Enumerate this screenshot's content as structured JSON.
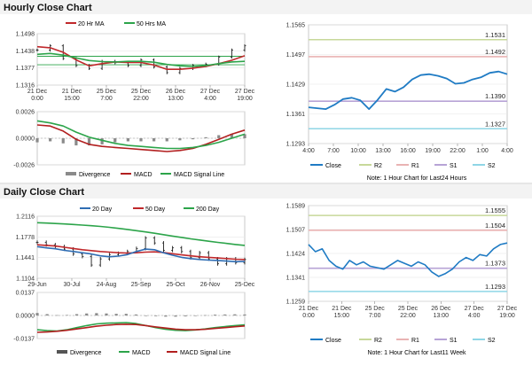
{
  "sections": {
    "hourly_title": "Hourly Close Chart",
    "daily_title": "Daily Close Chart"
  },
  "colors": {
    "ma20": "#2f6db3",
    "ma50": "#c0282b",
    "ma200": "#2ca44a",
    "close": "#1f7bc4",
    "r2": "#c7d89a",
    "r1": "#e9b3b3",
    "s1": "#b7a3d6",
    "s2": "#8fd6e6",
    "divergence": "#8a8a8a",
    "macd": "#b21f1f",
    "signal": "#2ca44a",
    "grid": "#e6e6e6"
  },
  "chart_data": [
    {
      "id": "hourly_price",
      "type": "line",
      "title": "",
      "y_ticks": [
        "1.1498",
        "1.1438",
        "1.1377",
        "1.1316"
      ],
      "ylim": [
        1.1316,
        1.1498
      ],
      "x_ticks": [
        [
          "21 Dec",
          "0:00"
        ],
        [
          "21 Dec",
          "15:00"
        ],
        [
          "25 Dec",
          "7:00"
        ],
        [
          "25 Dec",
          "22:00"
        ],
        [
          "26 Dec",
          "13:00"
        ],
        [
          "27 Dec",
          "4:00"
        ],
        [
          "27 Dec",
          "19:00"
        ]
      ],
      "legend": [
        "20 Hr MA",
        "50 Hrs MA"
      ],
      "series": [
        {
          "name": "20 Hr MA",
          "values": [
            1.1452,
            1.1448,
            1.1432,
            1.1405,
            1.1384,
            1.1392,
            1.1398,
            1.1396,
            1.1396,
            1.1387,
            1.1372,
            1.1372,
            1.1376,
            1.1382,
            1.1392,
            1.1404,
            1.142
          ]
        },
        {
          "name": "50 Hrs MA",
          "values": [
            1.1425,
            1.1428,
            1.1422,
            1.1412,
            1.1403,
            1.1399,
            1.1398,
            1.14,
            1.14,
            1.1397,
            1.1389,
            1.1384,
            1.1382,
            1.1385,
            1.1392,
            1.1398,
            1.14
          ]
        },
        {
          "name": "Close",
          "values": [
            1.144,
            1.1455,
            1.141,
            1.1385,
            1.1375,
            1.14,
            1.1395,
            1.1385,
            1.1405,
            1.138,
            1.136,
            1.1375,
            1.1385,
            1.139,
            1.1415,
            1.144,
            1.1455
          ]
        }
      ],
      "hlines": [
        1.1418,
        1.1388
      ]
    },
    {
      "id": "hourly_macd",
      "type": "line",
      "y_ticks": [
        "0.0026",
        "0.0000",
        "-0.0026"
      ],
      "ylim": [
        -0.0026,
        0.0026
      ],
      "legend": [
        "Divergence",
        "MACD",
        "MACD Signal Line"
      ],
      "series": [
        {
          "name": "MACD",
          "values": [
            0.0013,
            0.0012,
            0.0007,
            -0.0001,
            -0.0006,
            -0.0008,
            -0.0009,
            -0.001,
            -0.0011,
            -0.0012,
            -0.0013,
            -0.0012,
            -0.001,
            -0.0006,
            -0.0001,
            0.0004,
            0.0008
          ]
        },
        {
          "name": "MACD Signal Line",
          "values": [
            0.0017,
            0.0015,
            0.0012,
            0.0006,
            0.0001,
            -0.0002,
            -0.0005,
            -0.0007,
            -0.0008,
            -0.0009,
            -0.001,
            -0.001,
            -0.0009,
            -0.0007,
            -0.0004,
            0.0,
            0.0004
          ]
        }
      ]
    },
    {
      "id": "hourly_pivot",
      "type": "line",
      "y_ticks": [
        "1.1565",
        "1.1497",
        "1.1429",
        "1.1361",
        "1.1293"
      ],
      "ylim": [
        1.1293,
        1.1565
      ],
      "x_ticks": [
        "4:00",
        "7:00",
        "10:00",
        "13:00",
        "16:00",
        "19:00",
        "22:00",
        "1:00",
        "4:00"
      ],
      "levels": [
        {
          "name": "R2",
          "value": 1.1531,
          "label": "1.1531"
        },
        {
          "name": "R1",
          "value": 1.1492,
          "label": "1.1492"
        },
        {
          "name": "S1",
          "value": 1.139,
          "label": "1.1390"
        },
        {
          "name": "S2",
          "value": 1.1327,
          "label": "1.1327"
        }
      ],
      "legend": [
        "Close",
        "R2",
        "R1",
        "S1",
        "S2"
      ],
      "note": "Note: 1 Hour Chart for Last24 Hours",
      "series": [
        {
          "name": "Close",
          "values": [
            1.1376,
            1.1374,
            1.1372,
            1.1382,
            1.1395,
            1.1398,
            1.1392,
            1.1372,
            1.1393,
            1.1418,
            1.1412,
            1.1422,
            1.144,
            1.145,
            1.1452,
            1.1448,
            1.1442,
            1.143,
            1.1432,
            1.144,
            1.1445,
            1.1455,
            1.1458,
            1.1452
          ]
        }
      ]
    },
    {
      "id": "daily_price",
      "type": "line",
      "y_ticks": [
        "1.2116",
        "1.1778",
        "1.1441",
        "1.1104"
      ],
      "ylim": [
        1.1104,
        1.2116
      ],
      "x_ticks": [
        "29-Jun",
        "30-Jul",
        "24-Aug",
        "25-Sep",
        "25-Oct",
        "26-Nov",
        "25-Dec"
      ],
      "legend": [
        "20 Day",
        "50 Day",
        "200 Day"
      ],
      "series": [
        {
          "name": "20 Day",
          "values": [
            1.162,
            1.16,
            1.1585,
            1.156,
            1.154,
            1.152,
            1.15,
            1.147,
            1.1455,
            1.1465,
            1.149,
            1.154,
            1.158,
            1.157,
            1.152,
            1.148,
            1.1445,
            1.1425,
            1.141,
            1.14,
            1.1395,
            1.1385,
            1.1375,
            1.138
          ]
        },
        {
          "name": "50 Day",
          "values": [
            1.165,
            1.164,
            1.163,
            1.161,
            1.159,
            1.157,
            1.1555,
            1.154,
            1.153,
            1.152,
            1.1515,
            1.152,
            1.153,
            1.1535,
            1.1525,
            1.1505,
            1.1485,
            1.147,
            1.1455,
            1.1445,
            1.1435,
            1.1425,
            1.1415,
            1.141
          ]
        },
        {
          "name": "200 Day",
          "values": [
            1.201,
            1.2005,
            1.1998,
            1.199,
            1.1982,
            1.1972,
            1.1962,
            1.195,
            1.1935,
            1.1918,
            1.19,
            1.188,
            1.186,
            1.1838,
            1.1815,
            1.1792,
            1.177,
            1.1748,
            1.1728,
            1.1708,
            1.169,
            1.1672,
            1.1655,
            1.164
          ]
        },
        {
          "name": "Close",
          "values": [
            1.169,
            1.165,
            1.162,
            1.158,
            1.15,
            1.146,
            1.132,
            1.142,
            1.149,
            1.151,
            1.154,
            1.159,
            1.176,
            1.168,
            1.156,
            1.16,
            1.154,
            1.144,
            1.152,
            1.142,
            1.134,
            1.142,
            1.136,
            1.141
          ]
        }
      ]
    },
    {
      "id": "daily_macd",
      "type": "line",
      "y_ticks": [
        "0.0137",
        "0.0000",
        "-0.0137"
      ],
      "ylim": [
        -0.0137,
        0.0137
      ],
      "legend": [
        "Divergence",
        "MACD",
        "MACD Signal Line"
      ],
      "series": [
        {
          "name": "MACD",
          "values": [
            -0.0085,
            -0.009,
            -0.0092,
            -0.0085,
            -0.0072,
            -0.006,
            -0.005,
            -0.0046,
            -0.0044,
            -0.0042,
            -0.0048,
            -0.006,
            -0.0072,
            -0.0082,
            -0.0088,
            -0.009,
            -0.0086,
            -0.008,
            -0.0072,
            -0.0066,
            -0.006,
            -0.0056
          ]
        },
        {
          "name": "MACD Signal Line",
          "values": [
            -0.01,
            -0.0098,
            -0.0094,
            -0.0088,
            -0.008,
            -0.0072,
            -0.0064,
            -0.0058,
            -0.0054,
            -0.0052,
            -0.0054,
            -0.006,
            -0.0068,
            -0.0075,
            -0.0081,
            -0.0085,
            -0.0085,
            -0.0082,
            -0.0077,
            -0.0072,
            -0.0067,
            -0.0062
          ]
        }
      ]
    },
    {
      "id": "daily_pivot",
      "type": "line",
      "y_ticks": [
        "1.1589",
        "1.1507",
        "1.1424",
        "1.1341",
        "1.1259"
      ],
      "ylim": [
        1.1259,
        1.1589
      ],
      "x_ticks": [
        [
          "21 Dec",
          "0:00"
        ],
        [
          "21 Dec",
          "15:00"
        ],
        [
          "25 Dec",
          "7:00"
        ],
        [
          "25 Dec",
          "22:00"
        ],
        [
          "26 Dec",
          "13:00"
        ],
        [
          "27 Dec",
          "4:00"
        ],
        [
          "27 Dec",
          "19:00"
        ]
      ],
      "levels": [
        {
          "name": "R2",
          "value": 1.1555,
          "label": "1.1555"
        },
        {
          "name": "R1",
          "value": 1.1504,
          "label": "1.1504"
        },
        {
          "name": "S1",
          "value": 1.1373,
          "label": "1.1373"
        },
        {
          "name": "S2",
          "value": 1.1293,
          "label": "1.1293"
        }
      ],
      "legend": [
        "Close",
        "R2",
        "R1",
        "S1",
        "S2"
      ],
      "note": "Note: 1 Hour Chart for Last11 Week",
      "series": [
        {
          "name": "Close",
          "values": [
            1.1455,
            1.143,
            1.144,
            1.14,
            1.138,
            1.137,
            1.14,
            1.1385,
            1.1395,
            1.138,
            1.1375,
            1.137,
            1.1385,
            1.14,
            1.139,
            1.138,
            1.1395,
            1.1385,
            1.136,
            1.1345,
            1.1355,
            1.137,
            1.1395,
            1.141,
            1.14,
            1.142,
            1.1415,
            1.144,
            1.1455,
            1.146
          ]
        }
      ]
    }
  ]
}
